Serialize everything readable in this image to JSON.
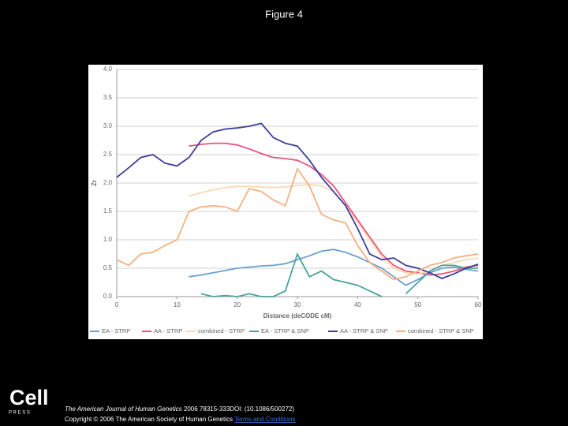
{
  "page": {
    "title": "Figure 4",
    "logo": {
      "name": "Cell",
      "sub": "P R E S S"
    },
    "citation": {
      "journal": "The American Journal of Human Genetics",
      "rest": " 2006 78315-333DOI: (10.1086/500272)"
    },
    "copyright": "Copyright © 2006 The American Society of Human Genetics",
    "link": "Terms and Conditions"
  },
  "chart_data": {
    "type": "line",
    "x_label": "Distance (deCODE cM)",
    "y_label": "Zr",
    "x": [
      0,
      2,
      4,
      6,
      8,
      10,
      12,
      14,
      16,
      18,
      20,
      22,
      24,
      26,
      28,
      30,
      32,
      34,
      36,
      38,
      40,
      42,
      44,
      46,
      48,
      50,
      52,
      54,
      56,
      58,
      60
    ],
    "xlim": [
      0,
      60
    ],
    "xticks": [
      0,
      10,
      20,
      30,
      40,
      50,
      60
    ],
    "ylim": [
      0,
      4
    ],
    "yticks": [
      {
        "value": 0,
        "label": "0.0"
      },
      0.5,
      {
        "value": 1,
        "label": "1.0"
      },
      1.5,
      {
        "value": 2,
        "label": "2.0"
      },
      2.5,
      {
        "value": 3,
        "label": "3.0"
      },
      3.5,
      {
        "value": 4,
        "label": "4.0"
      }
    ],
    "grid": true,
    "legend": "bottom",
    "series": [
      {
        "name": "EA - STRP",
        "color": "#6a9fd0",
        "values": [
          null,
          null,
          null,
          null,
          null,
          null,
          0.35,
          0.38,
          0.42,
          0.46,
          0.5,
          0.52,
          0.54,
          0.55,
          0.58,
          0.65,
          0.72,
          0.8,
          0.83,
          0.78,
          0.7,
          0.6,
          0.5,
          0.35,
          0.2,
          0.3,
          0.42,
          0.5,
          0.52,
          0.48,
          0.45
        ]
      },
      {
        "name": "AA - STRP",
        "color": "#e8547a",
        "values": [
          null,
          null,
          null,
          null,
          null,
          null,
          2.65,
          2.68,
          2.7,
          2.7,
          2.67,
          2.6,
          2.52,
          2.45,
          2.43,
          2.4,
          2.3,
          2.15,
          1.95,
          1.65,
          1.35,
          1.05,
          0.75,
          0.55,
          0.45,
          0.42,
          0.38,
          0.4,
          0.45,
          0.52,
          0.55
        ]
      },
      {
        "name": "combined - STRP",
        "color": "#f9d9b4",
        "values": [
          null,
          null,
          null,
          null,
          null,
          null,
          1.77,
          1.83,
          1.88,
          1.92,
          1.94,
          1.94,
          1.93,
          1.92,
          1.93,
          1.96,
          1.97,
          1.95,
          1.85,
          1.6,
          1.3,
          1.0,
          0.7,
          0.5,
          0.42,
          0.4,
          0.45,
          0.55,
          0.6,
          0.65,
          0.68
        ]
      },
      {
        "name": "EA - STRP & SNP",
        "color": "#4aa39a",
        "values": [
          null,
          null,
          null,
          null,
          null,
          null,
          null,
          0.05,
          0.0,
          0.02,
          0.0,
          0.05,
          0.0,
          0.0,
          0.1,
          0.75,
          0.35,
          0.45,
          0.3,
          0.25,
          0.2,
          0.1,
          0.0,
          null,
          0.05,
          0.25,
          0.45,
          0.55,
          0.55,
          0.5,
          0.5
        ]
      },
      {
        "name": "AA - STRP & SNP",
        "color": "#3b3f99",
        "values": [
          2.1,
          2.27,
          2.45,
          2.5,
          2.35,
          2.3,
          2.45,
          2.75,
          2.9,
          2.95,
          2.97,
          3.0,
          3.05,
          2.8,
          2.7,
          2.65,
          2.4,
          2.1,
          1.85,
          1.6,
          1.2,
          0.75,
          0.65,
          0.68,
          0.55,
          0.5,
          0.42,
          0.32,
          0.4,
          0.5,
          0.57
        ]
      },
      {
        "name": "combined - STRP & SNP",
        "color": "#f4b183",
        "values": [
          0.65,
          0.55,
          0.75,
          0.78,
          0.9,
          1.0,
          1.5,
          1.58,
          1.6,
          1.58,
          1.5,
          1.9,
          1.85,
          1.7,
          1.6,
          2.25,
          1.95,
          1.45,
          1.35,
          1.3,
          0.9,
          0.6,
          0.45,
          0.3,
          0.35,
          0.45,
          0.55,
          0.6,
          0.68,
          0.72,
          0.75
        ]
      }
    ]
  }
}
